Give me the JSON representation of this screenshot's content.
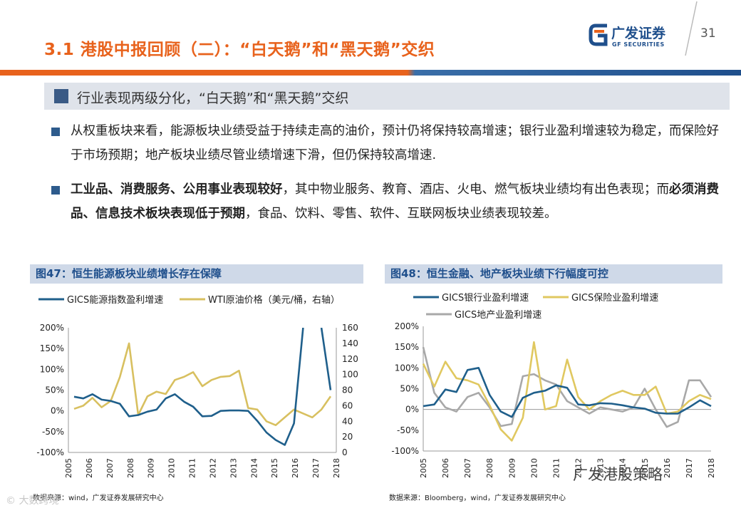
{
  "header": {
    "title": "3.1 港股中报回顾（二）：“白天鹅”和“黑天鹅”交织",
    "logo_cn": "广发证券",
    "logo_en": "GF SECURITIES",
    "page_number": "31",
    "brand_color": "#e8621c",
    "navy_color": "#1f4f8c"
  },
  "subtitle": "行业表现两级分化，“白天鹅”和“黑天鹅”交织",
  "bullets": {
    "b1": "从权重板块来看，能源板块业绩受益于持续走高的油价，预计仍将保持较高增速；银行业盈利增速较为稳定，而保险好于市场预期；地产板块业绩尽管业绩增速下滑，但仍保持较高增速.",
    "b2_bold1": "工业品、消费服务、公用事业表现较好",
    "b2_text1": "，其中物业服务、教育、酒店、火电、燃气板块业绩均有出色表现；而",
    "b2_bold2": "必须消费品、信息技术板块表现低于预期",
    "b2_text2": "，食品、饮料、零售、软件、互联网板块业绩表现较差。"
  },
  "chart_data": [
    {
      "type": "line",
      "title": "图47：恒生能源板块业绩增长存在保障",
      "x_labels": [
        "2005",
        "2006",
        "2007",
        "2008",
        "2009",
        "2010",
        "2011",
        "2012",
        "2013",
        "2014",
        "2015",
        "2016",
        "2017",
        "2018"
      ],
      "ylim_left": [
        -100,
        200
      ],
      "y_ticks_left": [
        "200%",
        "150%",
        "100%",
        "50%",
        "0%",
        "-50%",
        "-100%"
      ],
      "ylim_right": [
        0,
        160
      ],
      "y_ticks_right": [
        "160",
        "140",
        "120",
        "100",
        "80",
        "60",
        "40",
        "20",
        "0"
      ],
      "series": [
        {
          "name": "GICS能源指数盈利增速",
          "axis": "left",
          "color": "#1f5f8b",
          "values": [
            34,
            30,
            40,
            27,
            24,
            17,
            -13,
            -10,
            -2,
            3,
            30,
            40,
            22,
            10,
            -13,
            -12,
            0,
            1,
            1,
            0,
            -24,
            -52,
            -70,
            -82,
            -30,
            200,
            null,
            200,
            50
          ]
        },
        {
          "name": "WTI原油价格（美元/桶，右轴）",
          "axis": "right",
          "color": "#d8c060",
          "values": [
            56,
            60,
            70,
            58,
            66,
            97,
            140,
            48,
            72,
            78,
            75,
            93,
            97,
            103,
            85,
            93,
            97,
            98,
            105,
            57,
            55,
            40,
            35,
            45,
            55,
            50,
            45,
            55,
            72
          ]
        }
      ],
      "source": "数据来源：wind，广发证券发展研究中心"
    },
    {
      "type": "line",
      "title": "图48：恒生金融、地产板块业绩下行幅度可控",
      "x_labels": [
        "2005",
        "2006",
        "2007",
        "2008",
        "2009",
        "2010",
        "2011",
        "2012",
        "2013",
        "2014",
        "2015",
        "2016",
        "2017",
        "2018"
      ],
      "ylim": [
        -100,
        200
      ],
      "y_ticks": [
        "200%",
        "150%",
        "100%",
        "50%",
        "0%",
        "-50%",
        "-100%"
      ],
      "series": [
        {
          "name": "GICS银行业盈利增速",
          "color": "#1f5f8b",
          "values": [
            8,
            12,
            48,
            42,
            95,
            100,
            35,
            -5,
            -18,
            28,
            40,
            45,
            58,
            52,
            12,
            10,
            15,
            14,
            10,
            5,
            2,
            -8,
            -10,
            -10,
            5,
            22,
            8
          ]
        },
        {
          "name": "GICS保险业盈利增速",
          "color": "#e0c860",
          "values": [
            110,
            55,
            115,
            75,
            70,
            60,
            10,
            -48,
            -75,
            -20,
            162,
            0,
            8,
            120,
            30,
            0,
            20,
            35,
            45,
            35,
            35,
            55,
            -10,
            -5,
            20,
            35,
            25
          ]
        },
        {
          "name": "GICS地产业盈利增速",
          "color": "#a8a8a8",
          "values": [
            150,
            40,
            5,
            -5,
            30,
            40,
            5,
            -40,
            -35,
            80,
            85,
            70,
            60,
            20,
            5,
            -10,
            5,
            0,
            -5,
            5,
            50,
            0,
            -42,
            -30,
            70,
            70,
            30
          ]
        }
      ],
      "source": "数据来源：Bloomberg，wind，广发证券发展研究中心"
    }
  ],
  "watermarks": {
    "left": "© 大数跨境",
    "right": "广发港股策略"
  }
}
